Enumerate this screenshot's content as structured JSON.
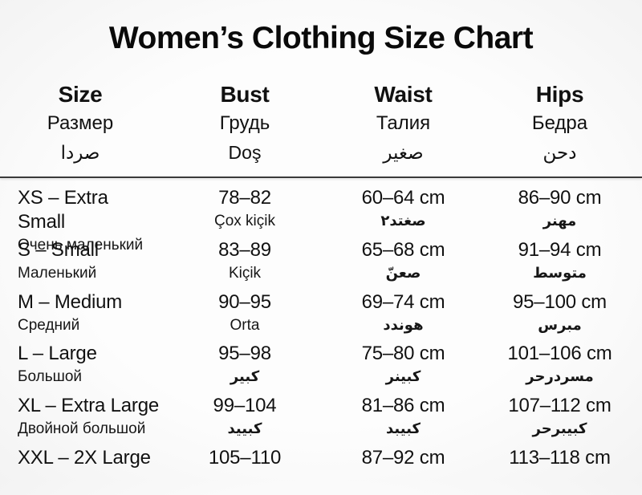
{
  "chart_data": {
    "type": "table",
    "title": "Women’s Clothing Size Chart",
    "legend_position": "none",
    "grid": false,
    "columns": [
      {
        "en": "Size",
        "ru": "Размер",
        "ar": "صردا"
      },
      {
        "en": "Bust",
        "ru": "Грудь",
        "ar": "Doş"
      },
      {
        "en": "Waist",
        "ru": "Талия",
        "ar": "صغير"
      },
      {
        "en": "Hips",
        "ru": "Бедра",
        "ar": "دحن"
      }
    ],
    "rows": [
      {
        "size": "XS – Extra Small",
        "size_sub": "Очень маленький",
        "bust": "78–82",
        "bust_sub": "Çox kiçik",
        "waist": "60–64 cm",
        "waist_sub": "صغتد٢",
        "hips": "86–90 cm",
        "hips_sub": "مهنر"
      },
      {
        "size": "S – Small",
        "size_sub": "Маленький",
        "bust": "83–89",
        "bust_sub": "Kiçik",
        "waist": "65–68 cm",
        "waist_sub": "صعنّ",
        "hips": "91–94 cm",
        "hips_sub": "متوسط"
      },
      {
        "size": "M – Medium",
        "size_sub": "Средний",
        "bust": "90–95",
        "bust_sub": "Orta",
        "waist": "69–74 cm",
        "waist_sub": "هوندد",
        "hips": "95–100 cm",
        "hips_sub": "مبرس"
      },
      {
        "size": "L – Large",
        "size_sub": "Большой",
        "bust": "95–98",
        "bust_sub": "كبير",
        "waist": "75–80 cm",
        "waist_sub": "كبينر",
        "hips": "101–106 cm",
        "hips_sub": "مسردرحر"
      },
      {
        "size": "XL – Extra Large",
        "size_sub": "Двойной большой",
        "bust": "99–104",
        "bust_sub": "كبييد",
        "waist": "81–86 cm",
        "waist_sub": "كبيبد",
        "hips": "107–112 cm",
        "hips_sub": "كبيبرحر"
      },
      {
        "size": "XXL – 2X Large",
        "size_sub": "",
        "bust": "105–110",
        "bust_sub": "",
        "waist": "87–92 cm",
        "waist_sub": "",
        "hips": "113–118 cm",
        "hips_sub": ""
      }
    ]
  }
}
